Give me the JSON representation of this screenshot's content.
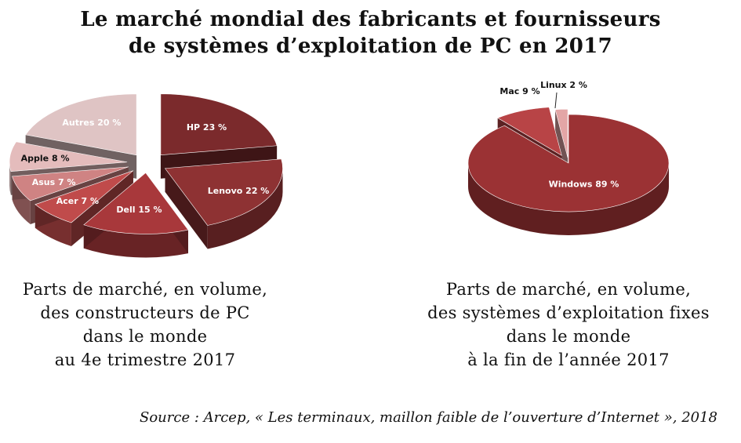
{
  "title": {
    "line1": "Le marché mondial des fabricants et fournisseurs",
    "line2": "de systèmes d’exploitation de PC en 2017"
  },
  "chart_data": [
    {
      "type": "pie",
      "categories": [
        "HP",
        "Lenovo",
        "Dell",
        "Acer",
        "Asus",
        "Apple",
        "Autres"
      ],
      "values": [
        23,
        22,
        15,
        7,
        7,
        8,
        20
      ],
      "unit": "%",
      "labels": [
        "HP 23 %",
        "Lenovo 22 %",
        "Dell 15 %",
        "Acer 7 %",
        "Asus 7 %",
        "Apple 8 %",
        "Autres 20 %"
      ],
      "colors": [
        "#7b2a2c",
        "#8e3233",
        "#a8383b",
        "#c04b4b",
        "#cf8383",
        "#e4bcbc",
        "#dfc4c4"
      ],
      "label_colors": [
        "#ffffff",
        "#ffffff",
        "#ffffff",
        "#ffffff",
        "#ffffff",
        "#111111",
        "#ffffff"
      ],
      "caption": [
        "Parts de marché, en volume,",
        "des constructeurs de PC",
        "dans le monde",
        "au 4e trimestre 2017"
      ]
    },
    {
      "type": "pie",
      "categories": [
        "Windows",
        "Mac",
        "Linux"
      ],
      "values": [
        89,
        9,
        2
      ],
      "unit": "%",
      "labels": [
        "Windows 89 %",
        "Mac 9 %",
        "Linux 2 %"
      ],
      "colors": [
        "#9b3234",
        "#b84446",
        "#e3a6a6"
      ],
      "label_colors": [
        "#ffffff",
        "#111111",
        "#111111"
      ],
      "caption": [
        "Parts de marché, en volume,",
        "des systèmes d’exploitation fixes",
        "dans le monde",
        "à la fin de l’année 2017"
      ]
    }
  ],
  "source": "Source : Arcep, « Les terminaux, maillon faible de l’ouverture d’Internet », 2018"
}
